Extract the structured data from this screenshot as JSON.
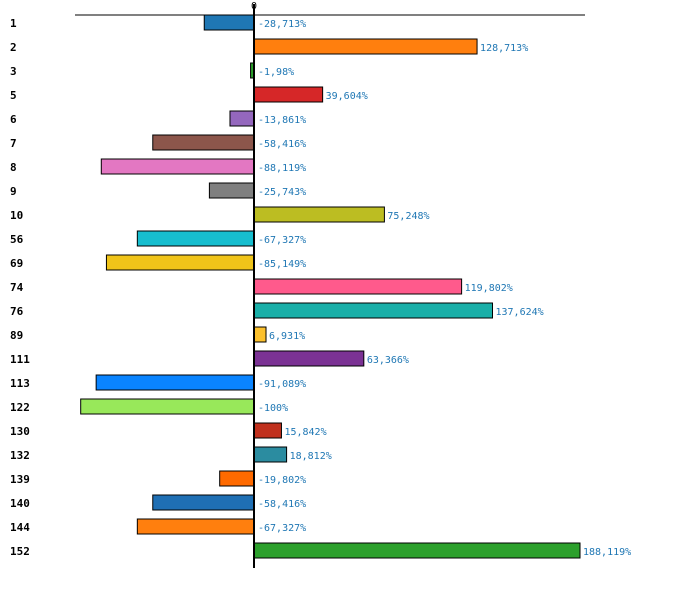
{
  "chart_data": {
    "type": "bar",
    "orientation": "horizontal",
    "title": "",
    "xlabel": "",
    "ylabel": "",
    "zero_label": "0",
    "xlim": [
      -100,
      188.119
    ],
    "grid": false,
    "legend": "none",
    "categories": [
      "1",
      "2",
      "3",
      "5",
      "6",
      "7",
      "8",
      "9",
      "10",
      "56",
      "69",
      "74",
      "76",
      "89",
      "111",
      "113",
      "122",
      "130",
      "132",
      "139",
      "140",
      "144",
      "152"
    ],
    "values": [
      -28.713,
      128.713,
      -1.98,
      39.604,
      -13.861,
      -58.416,
      -88.119,
      -25.743,
      75.248,
      -67.327,
      -85.149,
      119.802,
      137.624,
      6.931,
      63.366,
      -91.089,
      -100,
      15.842,
      18.812,
      -19.802,
      -58.416,
      -67.327,
      188.119
    ],
    "labels": [
      "-28,713%",
      "128,713%",
      "-1,98%",
      "39,604%",
      "-13,861%",
      "-58,416%",
      "-88,119%",
      "-25,743%",
      "75,248%",
      "-67,327%",
      "-85,149%",
      "119,802%",
      "137,624%",
      "6,931%",
      "63,366%",
      "-91,089%",
      "-100%",
      "15,842%",
      "18,812%",
      "-19,802%",
      "-58,416%",
      "-67,327%",
      "188,119%"
    ],
    "colors": [
      "#1f77b4",
      "#ff7f0e",
      "#2ca02c",
      "#d62728",
      "#9467bd",
      "#8c564b",
      "#e377c2",
      "#7f7f7f",
      "#bcbd22",
      "#17becf",
      "#f0c419",
      "#ff5a8c",
      "#1aafa8",
      "#fbc02d",
      "#7b3294",
      "#0a84ff",
      "#98e85a",
      "#c0301d",
      "#2b8ca0",
      "#ff6a00",
      "#1f6fb4",
      "#ff7f0e",
      "#2ca02c"
    ],
    "label_color": "#1f77b4"
  }
}
